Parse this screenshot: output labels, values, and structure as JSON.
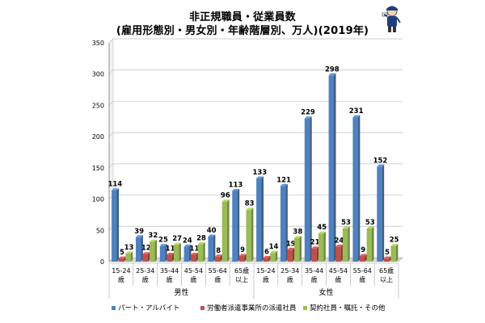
{
  "chart_data": {
    "type": "bar",
    "title": "非正規職員・従業員数",
    "subtitle": "(雇用形態別・男女別・年齢階層別、万人)(2019年)",
    "ylim": [
      0,
      350
    ],
    "yticks": [
      0,
      50,
      100,
      150,
      200,
      250,
      300,
      350
    ],
    "grid": true,
    "legend_position": "bottom",
    "categories": [
      [
        "15-24",
        "歳"
      ],
      [
        "25-34",
        "歳"
      ],
      [
        "35-44",
        "歳"
      ],
      [
        "45-54",
        "歳"
      ],
      [
        "55-64",
        "歳"
      ],
      [
        "65歳",
        "以上"
      ],
      [
        "15-24",
        "歳"
      ],
      [
        "25-34",
        "歳"
      ],
      [
        "35-44",
        "歳"
      ],
      [
        "45-54",
        "歳"
      ],
      [
        "55-64",
        "歳"
      ],
      [
        "65歳",
        "以上"
      ]
    ],
    "groups": [
      {
        "label": "男性",
        "count": 6
      },
      {
        "label": "女性",
        "count": 6
      }
    ],
    "series": [
      {
        "name": "パート・アルバイト",
        "color": "#4f81bd",
        "values": [
          114,
          39,
          25,
          24,
          40,
          113,
          133,
          121,
          229,
          298,
          231,
          152
        ]
      },
      {
        "name": "労働者派遣事業所の派遣社員",
        "color": "#c0504d",
        "values": [
          5,
          12,
          11,
          11,
          8,
          9,
          6,
          19,
          21,
          24,
          9,
          5
        ]
      },
      {
        "name": "契約社員・嘱託・その他",
        "color": "#9bbb59",
        "values": [
          13,
          32,
          27,
          28,
          96,
          83,
          14,
          38,
          45,
          53,
          53,
          25
        ]
      }
    ]
  }
}
